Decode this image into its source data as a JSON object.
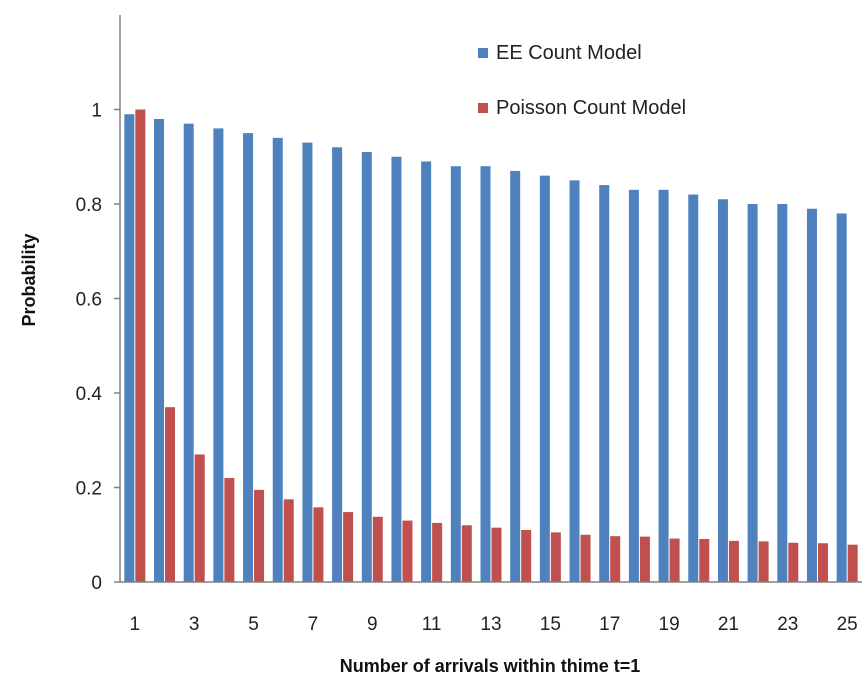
{
  "chart_data": {
    "type": "bar",
    "title": "",
    "xlabel": "Number of arrivals  within thime t=1",
    "ylabel": "Probability",
    "ylim": [
      0,
      1.2
    ],
    "y_ticks": [
      "0",
      "0.2",
      "0.4",
      "0.6",
      "0.8",
      "1"
    ],
    "y_tick_values": [
      0,
      0.2,
      0.4,
      0.6,
      0.8,
      1.0
    ],
    "categories": [
      1,
      2,
      3,
      4,
      5,
      6,
      7,
      8,
      9,
      10,
      11,
      12,
      13,
      14,
      15,
      16,
      17,
      18,
      19,
      20,
      21,
      22,
      23,
      24,
      25
    ],
    "x_tick_labels": [
      "1",
      "3",
      "5",
      "7",
      "9",
      "11",
      "13",
      "15",
      "17",
      "19",
      "21",
      "23",
      "25"
    ],
    "x_tick_values": [
      1,
      3,
      5,
      7,
      9,
      11,
      13,
      15,
      17,
      19,
      21,
      23,
      25
    ],
    "grid": false,
    "legend_position": "top-right",
    "series": [
      {
        "name": "EE Count Model",
        "color": "#4F81BD",
        "values": [
          0.99,
          0.98,
          0.97,
          0.96,
          0.95,
          0.94,
          0.93,
          0.92,
          0.91,
          0.9,
          0.89,
          0.88,
          0.88,
          0.87,
          0.86,
          0.85,
          0.84,
          0.83,
          0.83,
          0.82,
          0.81,
          0.8,
          0.8,
          0.79,
          0.78
        ]
      },
      {
        "name": "Poisson Count Model",
        "color": "#C0504D",
        "values": [
          1.0,
          0.37,
          0.27,
          0.22,
          0.195,
          0.175,
          0.158,
          0.148,
          0.138,
          0.13,
          0.125,
          0.12,
          0.115,
          0.11,
          0.105,
          0.1,
          0.097,
          0.096,
          0.092,
          0.091,
          0.087,
          0.086,
          0.083,
          0.082,
          0.079
        ]
      }
    ]
  }
}
